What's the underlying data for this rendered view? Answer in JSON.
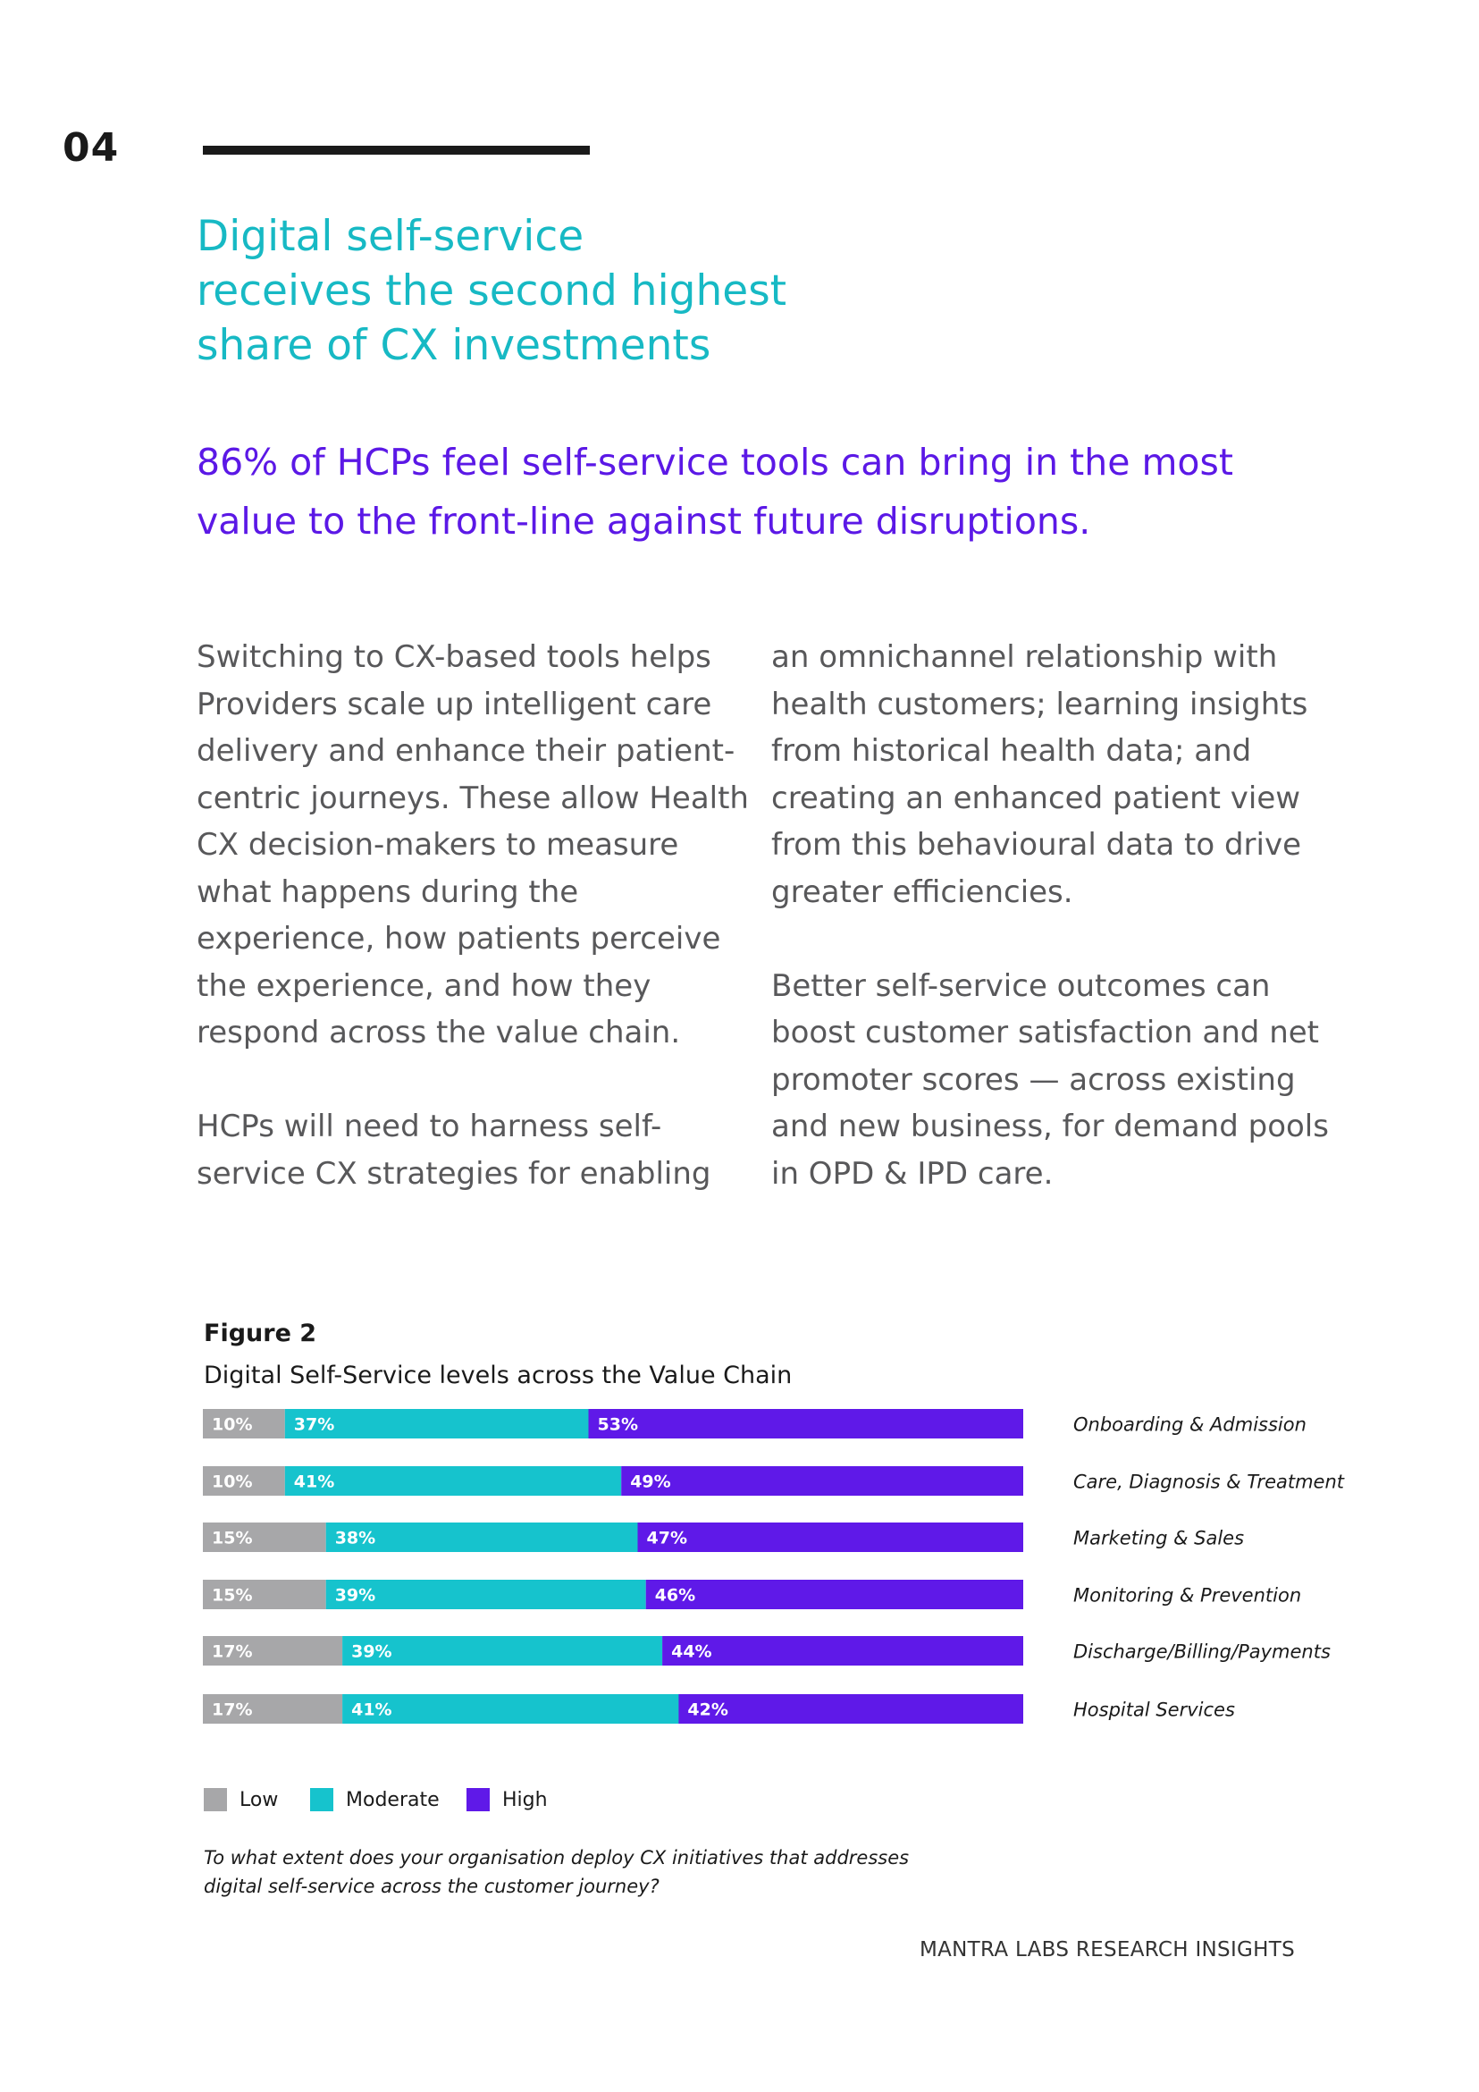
{
  "page": {
    "number": "04",
    "headline": [
      "Digital self-service",
      "receives the second highest",
      "share of CX investments"
    ],
    "subhead": [
      "86% of HCPs feel self-service tools can bring in the most",
      "value to the front-line against future disruptions."
    ],
    "column_left": {
      "para1": [
        "Switching to CX-based tools helps",
        "Providers scale up intelligent care",
        "delivery and enhance their patient-",
        "centric journeys. These allow Health",
        "CX decision-makers to measure",
        "what happens during the",
        "experience, how patients perceive",
        "the experience, and how they",
        "respond across the value chain."
      ],
      "para2": [
        "HCPs will need to harness self-",
        "service CX strategies for enabling"
      ]
    },
    "column_right": {
      "para1": [
        "an omnichannel relationship with",
        "health customers; learning insights",
        "from historical health data; and",
        "creating an enhanced patient view",
        "from this behavioural data to drive",
        "greater efficiencies."
      ],
      "para2": [
        "Better self-service outcomes can",
        "boost customer satisfaction and net",
        "promoter scores — across existing",
        "and new business, for demand pools",
        "in OPD & IPD care."
      ]
    },
    "figure": {
      "label": "Figure 2",
      "title": "Digital Self-Service levels across the Value Chain",
      "question": [
        "To what extent does your organisation deploy CX initiatives that addresses",
        "digital self-service across the customer journey?"
      ]
    },
    "footer": "MANTRA LABS RESEARCH INSIGHTS"
  },
  "chart_data": {
    "type": "bar",
    "orientation": "horizontal",
    "stacked": true,
    "title": "Digital Self-Service levels across the Value Chain",
    "categories": [
      "Onboarding & Admission",
      "Care, Diagnosis & Treatment",
      "Marketing & Sales",
      "Monitoring & Prevention",
      "Discharge/Billing/Payments",
      "Hospital Services"
    ],
    "series": [
      {
        "name": "Low",
        "color": "#a7a7a9",
        "values": [
          10,
          10,
          15,
          15,
          17,
          17
        ],
        "labels": [
          "10%",
          "10%",
          "15%",
          "15%",
          "17%",
          "17%"
        ]
      },
      {
        "name": "Moderate",
        "color": "#16c3cd",
        "values": [
          37,
          41,
          38,
          39,
          39,
          41
        ],
        "labels": [
          "37%",
          "41%",
          "38%",
          "39%",
          "39%",
          "41%"
        ]
      },
      {
        "name": "High",
        "color": "#5f19e8",
        "values": [
          53,
          49,
          47,
          46,
          44,
          42
        ],
        "labels": [
          "53%",
          "49%",
          "47%",
          "46%",
          "44%",
          "42%"
        ]
      }
    ],
    "xlim": [
      0,
      100
    ],
    "legend": "bottom-left",
    "grid": false
  }
}
